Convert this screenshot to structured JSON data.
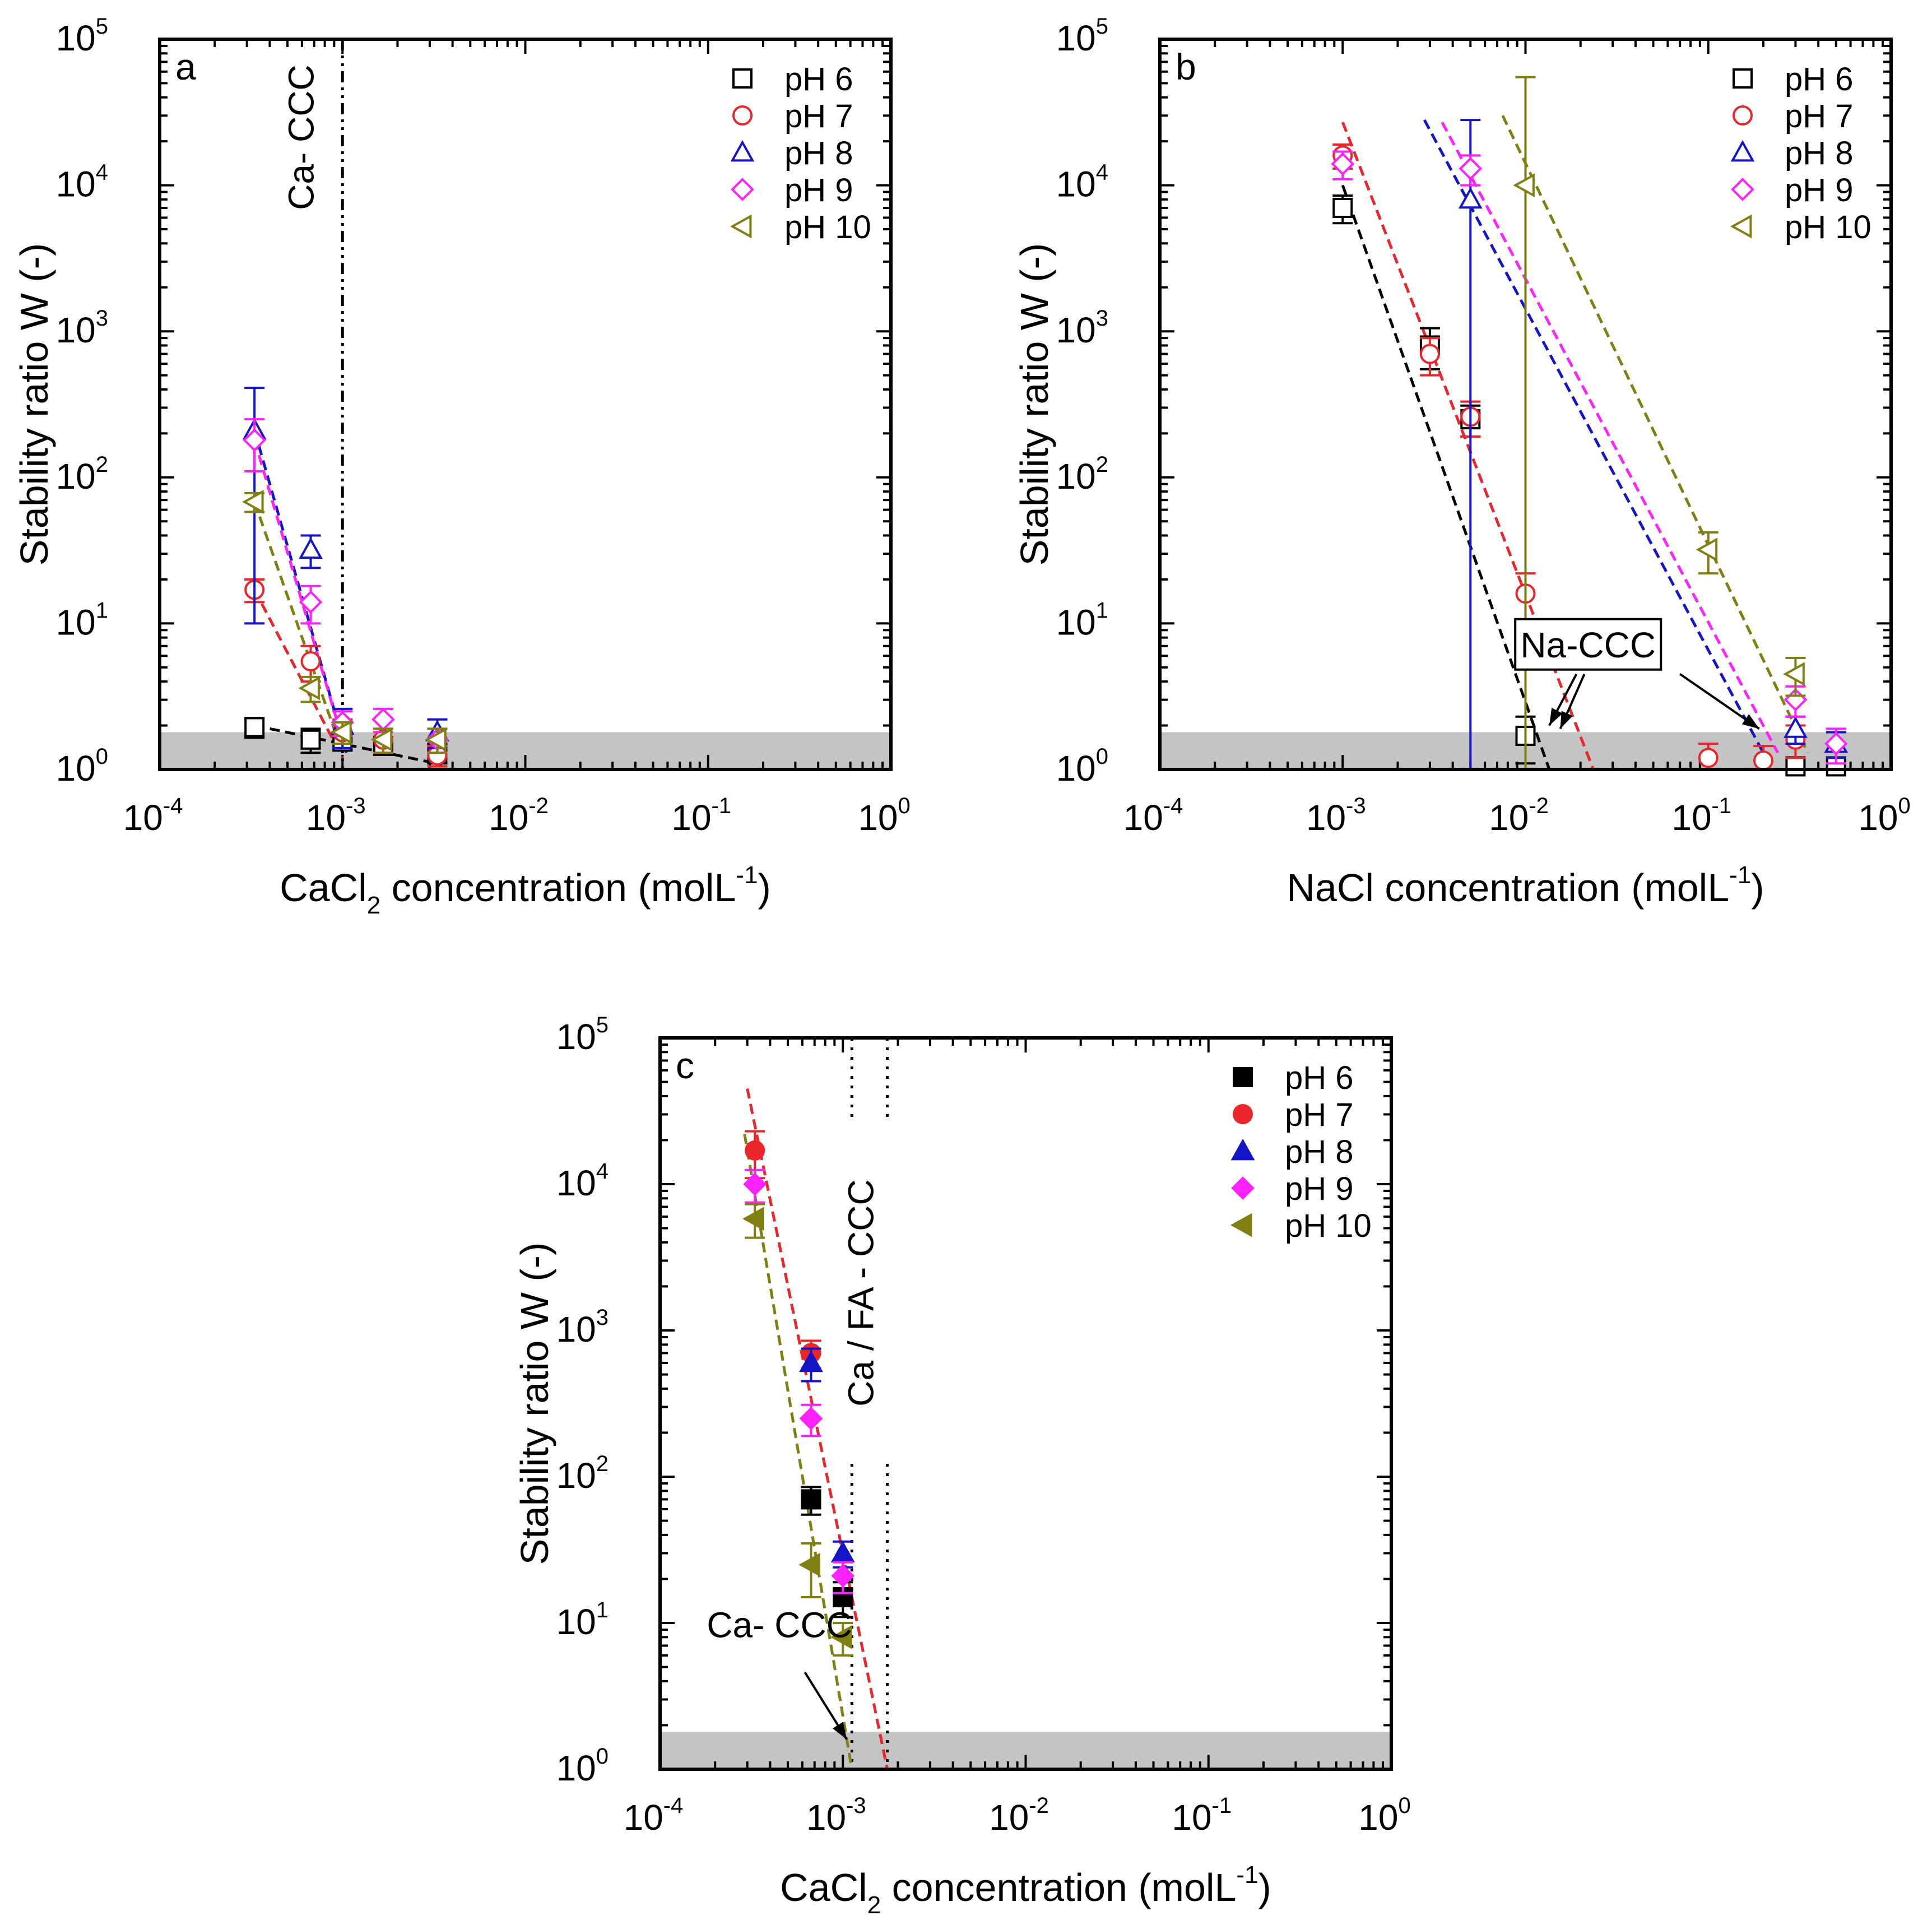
{
  "chart_data": [
    {
      "id": "a",
      "type": "scatter",
      "panel_label": "a",
      "title": "",
      "xscale": "log",
      "yscale": "log",
      "xlim": [
        0.0001,
        1
      ],
      "ylim": [
        1,
        100000
      ],
      "xlabel": {
        "prefix": "CaCl",
        "sub": "2",
        "suffix": " concentration (molL",
        "sup": "-1",
        "end": ")"
      },
      "ylabel": "Stability ratio W (-)",
      "xticks": [
        {
          "base": "10",
          "exp": "-4",
          "value": 0.0001
        },
        {
          "base": "10",
          "exp": "-3",
          "value": 0.001
        },
        {
          "base": "10",
          "exp": "-2",
          "value": 0.01
        },
        {
          "base": "10",
          "exp": "-1",
          "value": 0.1
        },
        {
          "base": "10",
          "exp": "0",
          "value": 1
        }
      ],
      "yticks": [
        {
          "base": "10",
          "exp": "0",
          "value": 1
        },
        {
          "base": "10",
          "exp": "1",
          "value": 10
        },
        {
          "base": "10",
          "exp": "2",
          "value": 100
        },
        {
          "base": "10",
          "exp": "3",
          "value": 1000
        },
        {
          "base": "10",
          "exp": "4",
          "value": 10000
        },
        {
          "base": "10",
          "exp": "5",
          "value": 100000
        }
      ],
      "shaded_band": {
        "y_from": 1,
        "y_to": 1.8
      },
      "legend_position": "top-right",
      "marker_fill": "open",
      "series": [
        {
          "name": "pH 6",
          "color": "#000000",
          "marker": "square",
          "x": [
            0.00033,
            0.00067,
            0.001,
            0.00167,
            0.0033
          ],
          "y": [
            1.95,
            1.6,
            1.55,
            1.45,
            1.3
          ],
          "err": [
            0.3,
            0.3,
            0.2,
            0.15,
            0.2
          ],
          "fit": {
            "x": [
              0.00033,
              0.0035
            ],
            "y": [
              2.0,
              1.08
            ]
          }
        },
        {
          "name": "pH 7",
          "color": "#e8262b",
          "marker": "circle",
          "x": [
            0.00033,
            0.00067,
            0.001,
            0.00167,
            0.0033
          ],
          "y": [
            17,
            5.5,
            1.8,
            1.6,
            1.25
          ],
          "err": [
            3,
            1.5,
            0.4,
            0.3,
            0.2
          ],
          "fit": {
            "x": [
              0.00033,
              0.001
            ],
            "y": [
              17,
              1.2
            ]
          }
        },
        {
          "name": "pH 8",
          "color": "#1515c8",
          "marker": "triangle-up",
          "x": [
            0.00033,
            0.00067,
            0.001,
            0.0033
          ],
          "y": [
            210,
            32,
            2.0,
            1.8
          ],
          "err": [
            200,
            8,
            0.6,
            0.4
          ],
          "fit": {
            "x": [
              0.00033,
              0.00105
            ],
            "y": [
              210,
              1.3
            ]
          }
        },
        {
          "name": "pH 9",
          "color": "#ff22ff",
          "marker": "diamond",
          "x": [
            0.00033,
            0.00067,
            0.001,
            0.00167,
            0.0033
          ],
          "y": [
            180,
            14,
            2.1,
            2.2,
            1.6
          ],
          "err": [
            70,
            4,
            0.4,
            0.4,
            0.3
          ],
          "fit": {
            "x": [
              0.00033,
              0.001
            ],
            "y": [
              180,
              1.6
            ]
          }
        },
        {
          "name": "pH 10",
          "color": "#7f7f12",
          "marker": "triangle-left",
          "x": [
            0.00033,
            0.00067,
            0.001,
            0.00167,
            0.0033
          ],
          "y": [
            68,
            3.6,
            1.8,
            1.6,
            1.6
          ],
          "err": [
            10,
            0.7,
            0.3,
            0.3,
            0.3
          ],
          "fit": {
            "x": [
              0.00033,
              0.001
            ],
            "y": [
              68,
              1.3
            ]
          }
        }
      ],
      "ccc_lines": [
        {
          "x": 0.001,
          "style": "dash-dot",
          "label": "Ca- CCC"
        }
      ],
      "annotations": []
    },
    {
      "id": "b",
      "type": "scatter",
      "panel_label": "b",
      "title": "",
      "xscale": "log",
      "yscale": "log",
      "xlim": [
        0.0001,
        1
      ],
      "ylim": [
        1,
        100000
      ],
      "xlabel": {
        "prefix": "NaCl concentration (molL",
        "sub": "",
        "suffix": "",
        "sup": "-1",
        "end": ")"
      },
      "ylabel": "Stability ratio W (-)",
      "xticks": [
        {
          "base": "10",
          "exp": "-4",
          "value": 0.0001
        },
        {
          "base": "10",
          "exp": "-3",
          "value": 0.001
        },
        {
          "base": "10",
          "exp": "-2",
          "value": 0.01
        },
        {
          "base": "10",
          "exp": "-1",
          "value": 0.1
        },
        {
          "base": "10",
          "exp": "0",
          "value": 1
        }
      ],
      "yticks": [
        {
          "base": "10",
          "exp": "0",
          "value": 1
        },
        {
          "base": "10",
          "exp": "1",
          "value": 10
        },
        {
          "base": "10",
          "exp": "2",
          "value": 100
        },
        {
          "base": "10",
          "exp": "3",
          "value": 1000
        },
        {
          "base": "10",
          "exp": "4",
          "value": 10000
        },
        {
          "base": "10",
          "exp": "5",
          "value": 100000
        }
      ],
      "shaded_band": {
        "y_from": 1,
        "y_to": 1.8
      },
      "legend_position": "top-right",
      "marker_fill": "open",
      "series": [
        {
          "name": "pH 6",
          "color": "#000000",
          "marker": "square",
          "x": [
            0.001,
            0.003,
            0.005,
            0.01,
            0.3,
            0.5
          ],
          "y": [
            7000,
            800,
            250,
            1.7,
            1.05,
            1.05
          ],
          "err": [
            1500,
            250,
            60,
            0.6,
            0.15,
            0.1
          ],
          "fit": {
            "x": [
              0.001,
              0.0135
            ],
            "y": [
              10000,
              1.0
            ]
          }
        },
        {
          "name": "pH 7",
          "color": "#e8262b",
          "marker": "circle",
          "x": [
            0.001,
            0.003,
            0.005,
            0.01,
            0.1,
            0.2,
            0.3
          ],
          "y": [
            16000,
            700,
            260,
            16,
            1.2,
            1.15,
            1.6
          ],
          "err": [
            3000,
            200,
            70,
            6,
            0.3,
            0.3,
            0.4
          ],
          "fit": {
            "x": [
              0.001,
              0.0235
            ],
            "y": [
              27000,
              1.0
            ]
          }
        },
        {
          "name": "pH 8",
          "color": "#1515c8",
          "marker": "triangle-up",
          "x": [
            0.005,
            0.3,
            0.5
          ],
          "y": [
            8000,
            1.9,
            1.5
          ],
          "err": [
            20000,
            0.4,
            0.3
          ],
          "fit": {
            "x": [
              0.0028,
              0.2
            ],
            "y": [
              28000,
              1.3
            ]
          }
        },
        {
          "name": "pH 9",
          "color": "#ff22ff",
          "marker": "diamond",
          "x": [
            0.001,
            0.005,
            0.3,
            0.5
          ],
          "y": [
            14000,
            13000,
            3.0,
            1.5
          ],
          "err": [
            3000,
            3000,
            0.7,
            0.4
          ],
          "fit": {
            "x": [
              0.0035,
              0.24
            ],
            "y": [
              27000,
              1.3
            ]
          }
        },
        {
          "name": "pH 10",
          "color": "#7f7f12",
          "marker": "triangle-left",
          "x": [
            0.01,
            0.1,
            0.3
          ],
          "y": [
            10000,
            32,
            4.5
          ],
          "err": [
            45000,
            10,
            1.3
          ],
          "fit": {
            "x": [
              0.0075,
              0.35
            ],
            "y": [
              30000,
              1.3
            ]
          }
        }
      ],
      "ccc_lines": [],
      "annotations": [
        {
          "text": "Na-CCC",
          "box": {
            "x": 0.022,
            "y": 7.0
          },
          "arrows": [
            {
              "from": {
                "x": 0.019,
                "y": 4.5
              },
              "to": {
                "x": 0.0135,
                "y": 2.0
              }
            },
            {
              "from": {
                "x": 0.021,
                "y": 4.5
              },
              "to": {
                "x": 0.0155,
                "y": 1.9
              }
            },
            {
              "from": {
                "x": 0.07,
                "y": 4.5
              },
              "to": {
                "x": 0.19,
                "y": 1.9
              }
            }
          ]
        }
      ]
    },
    {
      "id": "c",
      "type": "scatter",
      "panel_label": "c",
      "title": "",
      "xscale": "log",
      "yscale": "log",
      "xlim": [
        0.0001,
        1
      ],
      "ylim": [
        1,
        100000
      ],
      "xlabel": {
        "prefix": "CaCl",
        "sub": "2",
        "suffix": " concentration (molL",
        "sup": "-1",
        "end": ")"
      },
      "ylabel": "Stability ratio W (-)",
      "xticks": [
        {
          "base": "10",
          "exp": "-4",
          "value": 0.0001
        },
        {
          "base": "10",
          "exp": "-3",
          "value": 0.001
        },
        {
          "base": "10",
          "exp": "-2",
          "value": 0.01
        },
        {
          "base": "10",
          "exp": "-1",
          "value": 0.1
        },
        {
          "base": "10",
          "exp": "0",
          "value": 1
        }
      ],
      "yticks": [
        {
          "base": "10",
          "exp": "0",
          "value": 1
        },
        {
          "base": "10",
          "exp": "1",
          "value": 10
        },
        {
          "base": "10",
          "exp": "2",
          "value": 100
        },
        {
          "base": "10",
          "exp": "3",
          "value": 1000
        },
        {
          "base": "10",
          "exp": "4",
          "value": 10000
        },
        {
          "base": "10",
          "exp": "5",
          "value": 100000
        }
      ],
      "shaded_band": {
        "y_from": 1,
        "y_to": 1.8
      },
      "legend_position": "top-right",
      "marker_fill": "filled",
      "series": [
        {
          "name": "pH 6",
          "color": "#000000",
          "marker": "square",
          "x": [
            0.00067,
            0.001
          ],
          "y": [
            70,
            15
          ],
          "err": [
            15,
            4
          ],
          "fit": null
        },
        {
          "name": "pH 7",
          "color": "#e8262b",
          "marker": "circle",
          "x": [
            0.00033,
            0.00067
          ],
          "y": [
            17000,
            700
          ],
          "err": [
            6000,
            150
          ],
          "fit": {
            "x": [
              0.0003,
              0.00175
            ],
            "y": [
              45000,
              1.0
            ]
          }
        },
        {
          "name": "pH 8",
          "color": "#1515c8",
          "marker": "triangle-up",
          "x": [
            0.00067,
            0.001
          ],
          "y": [
            600,
            30
          ],
          "err": [
            150,
            6
          ],
          "fit": null
        },
        {
          "name": "pH 9",
          "color": "#ff22ff",
          "marker": "diamond",
          "x": [
            0.00033,
            0.00067,
            0.001
          ],
          "y": [
            10000,
            250,
            21
          ],
          "err": [
            2500,
            60,
            5
          ],
          "fit": null
        },
        {
          "name": "pH 10",
          "color": "#7f7f12",
          "marker": "triangle-left",
          "x": [
            0.00033,
            0.00067,
            0.001
          ],
          "y": [
            5800,
            25,
            8
          ],
          "err": [
            1500,
            10,
            2
          ],
          "fit": {
            "x": [
              0.00029,
              0.00112
            ],
            "y": [
              22000,
              1.0
            ]
          }
        }
      ],
      "ccc_lines": [
        {
          "x": 0.00112,
          "style": "dotted",
          "label": ""
        },
        {
          "x": 0.00175,
          "style": "dotted",
          "label": "Ca / FA - CCC"
        }
      ],
      "annotations": [
        {
          "text": "Ca- CCC",
          "box": null,
          "label_at": {
            "x": 0.00045,
            "y": 8.0
          },
          "arrows": [
            {
              "from": {
                "x": 0.00062,
                "y": 4.6
              },
              "to": {
                "x": 0.00105,
                "y": 1.6
              }
            }
          ]
        }
      ]
    }
  ]
}
